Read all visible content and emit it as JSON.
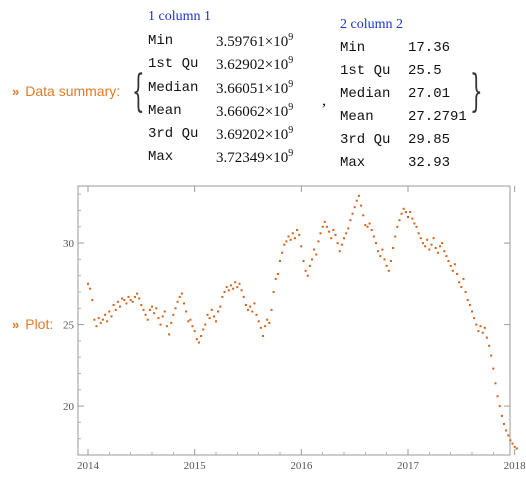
{
  "summary": {
    "label": "Data summary:",
    "col1": {
      "title": "1 column 1",
      "rows": [
        {
          "stat": "Min",
          "mantissa": "3.59761",
          "times": "×",
          "base": "10",
          "exp": "9"
        },
        {
          "stat": "1st Qu",
          "mantissa": "3.62902",
          "times": "×",
          "base": "10",
          "exp": "9"
        },
        {
          "stat": "Median",
          "mantissa": "3.66051",
          "times": "×",
          "base": "10",
          "exp": "9"
        },
        {
          "stat": "Mean",
          "mantissa": "3.66062",
          "times": "×",
          "base": "10",
          "exp": "9"
        },
        {
          "stat": "3rd Qu",
          "mantissa": "3.69202",
          "times": "×",
          "base": "10",
          "exp": "9"
        },
        {
          "stat": "Max",
          "mantissa": "3.72349",
          "times": "×",
          "base": "10",
          "exp": "9"
        }
      ]
    },
    "col2": {
      "title": "2 column 2",
      "rows": [
        {
          "stat": "Min",
          "value": "17.36"
        },
        {
          "stat": "1st Qu",
          "value": "25.5"
        },
        {
          "stat": "Median",
          "value": "27.01"
        },
        {
          "stat": "Mean",
          "value": "27.2791"
        },
        {
          "stat": "3rd Qu",
          "value": "29.85"
        },
        {
          "stat": "Max",
          "value": "32.93"
        }
      ]
    }
  },
  "plot": {
    "label": "Plot:"
  },
  "chart_data": {
    "type": "scatter",
    "title": "",
    "xlabel": "",
    "ylabel": "",
    "x_range": [
      2014.0,
      2018.05
    ],
    "ylim": [
      17.0,
      33.5
    ],
    "x_ticks": [
      "2014",
      "2015",
      "2016",
      "2017",
      "2018"
    ],
    "y_ticks": [
      "20",
      "25",
      "30"
    ],
    "point_color": "#d2601a",
    "series": [
      {
        "points": [
          [
            2014.0,
            27.5
          ],
          [
            2014.02,
            27.2
          ],
          [
            2014.04,
            26.5
          ],
          [
            2014.06,
            25.3
          ],
          [
            2014.08,
            24.9
          ],
          [
            2014.1,
            25.4
          ],
          [
            2014.12,
            25.1
          ],
          [
            2014.14,
            25.3
          ],
          [
            2014.16,
            25.6
          ],
          [
            2014.18,
            25.2
          ],
          [
            2014.2,
            25.8
          ],
          [
            2014.22,
            25.5
          ],
          [
            2014.24,
            26.2
          ],
          [
            2014.26,
            25.9
          ],
          [
            2014.28,
            26.4
          ],
          [
            2014.3,
            26.1
          ],
          [
            2014.32,
            26.6
          ],
          [
            2014.34,
            26.5
          ],
          [
            2014.36,
            26.3
          ],
          [
            2014.38,
            26.7
          ],
          [
            2014.4,
            26.5
          ],
          [
            2014.42,
            26.4
          ],
          [
            2014.44,
            26.7
          ],
          [
            2014.46,
            26.9
          ],
          [
            2014.48,
            26.6
          ],
          [
            2014.5,
            26.2
          ],
          [
            2014.52,
            25.9
          ],
          [
            2014.54,
            25.6
          ],
          [
            2014.56,
            25.3
          ],
          [
            2014.58,
            25.9
          ],
          [
            2014.6,
            26.1
          ],
          [
            2014.62,
            25.7
          ],
          [
            2014.64,
            26.0
          ],
          [
            2014.66,
            25.4
          ],
          [
            2014.68,
            25.0
          ],
          [
            2014.7,
            25.5
          ],
          [
            2014.72,
            25.8
          ],
          [
            2014.74,
            24.9
          ],
          [
            2014.76,
            24.4
          ],
          [
            2014.78,
            25.1
          ],
          [
            2014.8,
            25.6
          ],
          [
            2014.82,
            26.0
          ],
          [
            2014.84,
            26.4
          ],
          [
            2014.86,
            26.7
          ],
          [
            2014.88,
            26.9
          ],
          [
            2014.9,
            26.3
          ],
          [
            2014.92,
            25.8
          ],
          [
            2014.94,
            25.2
          ],
          [
            2014.96,
            25.3
          ],
          [
            2014.98,
            24.9
          ],
          [
            2015.0,
            24.6
          ],
          [
            2015.02,
            24.1
          ],
          [
            2015.04,
            23.9
          ],
          [
            2015.06,
            24.3
          ],
          [
            2015.08,
            24.7
          ],
          [
            2015.1,
            25.0
          ],
          [
            2015.12,
            25.6
          ],
          [
            2015.14,
            25.4
          ],
          [
            2015.16,
            25.9
          ],
          [
            2015.18,
            25.5
          ],
          [
            2015.2,
            25.2
          ],
          [
            2015.22,
            25.8
          ],
          [
            2015.24,
            26.1
          ],
          [
            2015.26,
            26.7
          ],
          [
            2015.28,
            27.0
          ],
          [
            2015.3,
            27.3
          ],
          [
            2015.32,
            27.1
          ],
          [
            2015.34,
            27.4
          ],
          [
            2015.36,
            27.2
          ],
          [
            2015.38,
            27.6
          ],
          [
            2015.4,
            27.3
          ],
          [
            2015.42,
            27.5
          ],
          [
            2015.44,
            27.1
          ],
          [
            2015.46,
            26.7
          ],
          [
            2015.48,
            26.2
          ],
          [
            2015.5,
            25.9
          ],
          [
            2015.52,
            26.1
          ],
          [
            2015.54,
            25.8
          ],
          [
            2015.56,
            26.3
          ],
          [
            2015.58,
            25.6
          ],
          [
            2015.6,
            25.2
          ],
          [
            2015.62,
            24.8
          ],
          [
            2015.64,
            24.3
          ],
          [
            2015.66,
            24.9
          ],
          [
            2015.68,
            25.3
          ],
          [
            2015.7,
            25.1
          ],
          [
            2015.72,
            25.9
          ],
          [
            2015.74,
            27.0
          ],
          [
            2015.76,
            27.8
          ],
          [
            2015.78,
            28.1
          ],
          [
            2015.8,
            28.9
          ],
          [
            2015.82,
            29.4
          ],
          [
            2015.84,
            29.9
          ],
          [
            2015.86,
            30.1
          ],
          [
            2015.88,
            30.4
          ],
          [
            2015.9,
            30.2
          ],
          [
            2015.92,
            30.6
          ],
          [
            2015.94,
            30.3
          ],
          [
            2015.96,
            30.8
          ],
          [
            2015.98,
            30.5
          ],
          [
            2016.0,
            29.8
          ],
          [
            2016.02,
            28.9
          ],
          [
            2016.04,
            28.3
          ],
          [
            2016.06,
            28.0
          ],
          [
            2016.08,
            28.6
          ],
          [
            2016.1,
            29.0
          ],
          [
            2016.12,
            29.6
          ],
          [
            2016.14,
            29.3
          ],
          [
            2016.16,
            30.1
          ],
          [
            2016.18,
            30.6
          ],
          [
            2016.2,
            31.0
          ],
          [
            2016.22,
            31.3
          ],
          [
            2016.24,
            31.0
          ],
          [
            2016.26,
            30.7
          ],
          [
            2016.28,
            30.3
          ],
          [
            2016.3,
            30.8
          ],
          [
            2016.32,
            30.5
          ],
          [
            2016.34,
            30.0
          ],
          [
            2016.36,
            29.5
          ],
          [
            2016.38,
            29.9
          ],
          [
            2016.4,
            30.3
          ],
          [
            2016.42,
            30.6
          ],
          [
            2016.44,
            30.9
          ],
          [
            2016.46,
            31.4
          ],
          [
            2016.48,
            31.8
          ],
          [
            2016.5,
            32.2
          ],
          [
            2016.52,
            32.6
          ],
          [
            2016.54,
            32.9
          ],
          [
            2016.56,
            32.3
          ],
          [
            2016.58,
            31.7
          ],
          [
            2016.6,
            31.1
          ],
          [
            2016.62,
            31.0
          ],
          [
            2016.64,
            31.2
          ],
          [
            2016.66,
            30.8
          ],
          [
            2016.68,
            30.4
          ],
          [
            2016.7,
            30.0
          ],
          [
            2016.72,
            29.5
          ],
          [
            2016.74,
            29.2
          ],
          [
            2016.76,
            29.6
          ],
          [
            2016.78,
            29.0
          ],
          [
            2016.8,
            28.6
          ],
          [
            2016.82,
            28.3
          ],
          [
            2016.84,
            28.9
          ],
          [
            2016.86,
            29.7
          ],
          [
            2016.88,
            30.4
          ],
          [
            2016.9,
            31.0
          ],
          [
            2016.92,
            31.4
          ],
          [
            2016.94,
            31.8
          ],
          [
            2016.96,
            32.1
          ],
          [
            2016.98,
            31.9
          ],
          [
            2017.0,
            31.6
          ],
          [
            2017.02,
            31.9
          ],
          [
            2017.04,
            31.5
          ],
          [
            2017.06,
            31.2
          ],
          [
            2017.08,
            31.0
          ],
          [
            2017.1,
            30.6
          ],
          [
            2017.12,
            30.3
          ],
          [
            2017.14,
            30.0
          ],
          [
            2017.16,
            29.8
          ],
          [
            2017.18,
            30.2
          ],
          [
            2017.2,
            29.6
          ],
          [
            2017.22,
            29.9
          ],
          [
            2017.24,
            30.3
          ],
          [
            2017.26,
            29.7
          ],
          [
            2017.28,
            29.4
          ],
          [
            2017.3,
            29.8
          ],
          [
            2017.32,
            30.0
          ],
          [
            2017.34,
            29.5
          ],
          [
            2017.36,
            29.2
          ],
          [
            2017.38,
            28.9
          ],
          [
            2017.4,
            28.6
          ],
          [
            2017.42,
            28.3
          ],
          [
            2017.44,
            28.7
          ],
          [
            2017.46,
            28.1
          ],
          [
            2017.48,
            27.6
          ],
          [
            2017.5,
            27.3
          ],
          [
            2017.52,
            27.8
          ],
          [
            2017.54,
            27.0
          ],
          [
            2017.56,
            26.5
          ],
          [
            2017.58,
            26.2
          ],
          [
            2017.6,
            25.8
          ],
          [
            2017.62,
            25.4
          ],
          [
            2017.64,
            25.0
          ],
          [
            2017.66,
            24.6
          ],
          [
            2017.68,
            24.9
          ],
          [
            2017.7,
            24.5
          ],
          [
            2017.72,
            24.8
          ],
          [
            2017.74,
            24.2
          ],
          [
            2017.76,
            23.7
          ],
          [
            2017.78,
            23.1
          ],
          [
            2017.8,
            22.3
          ],
          [
            2017.82,
            21.4
          ],
          [
            2017.84,
            20.6
          ],
          [
            2017.86,
            20.0
          ],
          [
            2017.88,
            19.4
          ],
          [
            2017.9,
            18.9
          ],
          [
            2017.92,
            18.5
          ],
          [
            2017.94,
            18.2
          ],
          [
            2017.96,
            17.9
          ],
          [
            2017.98,
            17.7
          ],
          [
            2018.0,
            17.5
          ],
          [
            2018.02,
            17.4
          ]
        ]
      }
    ]
  }
}
